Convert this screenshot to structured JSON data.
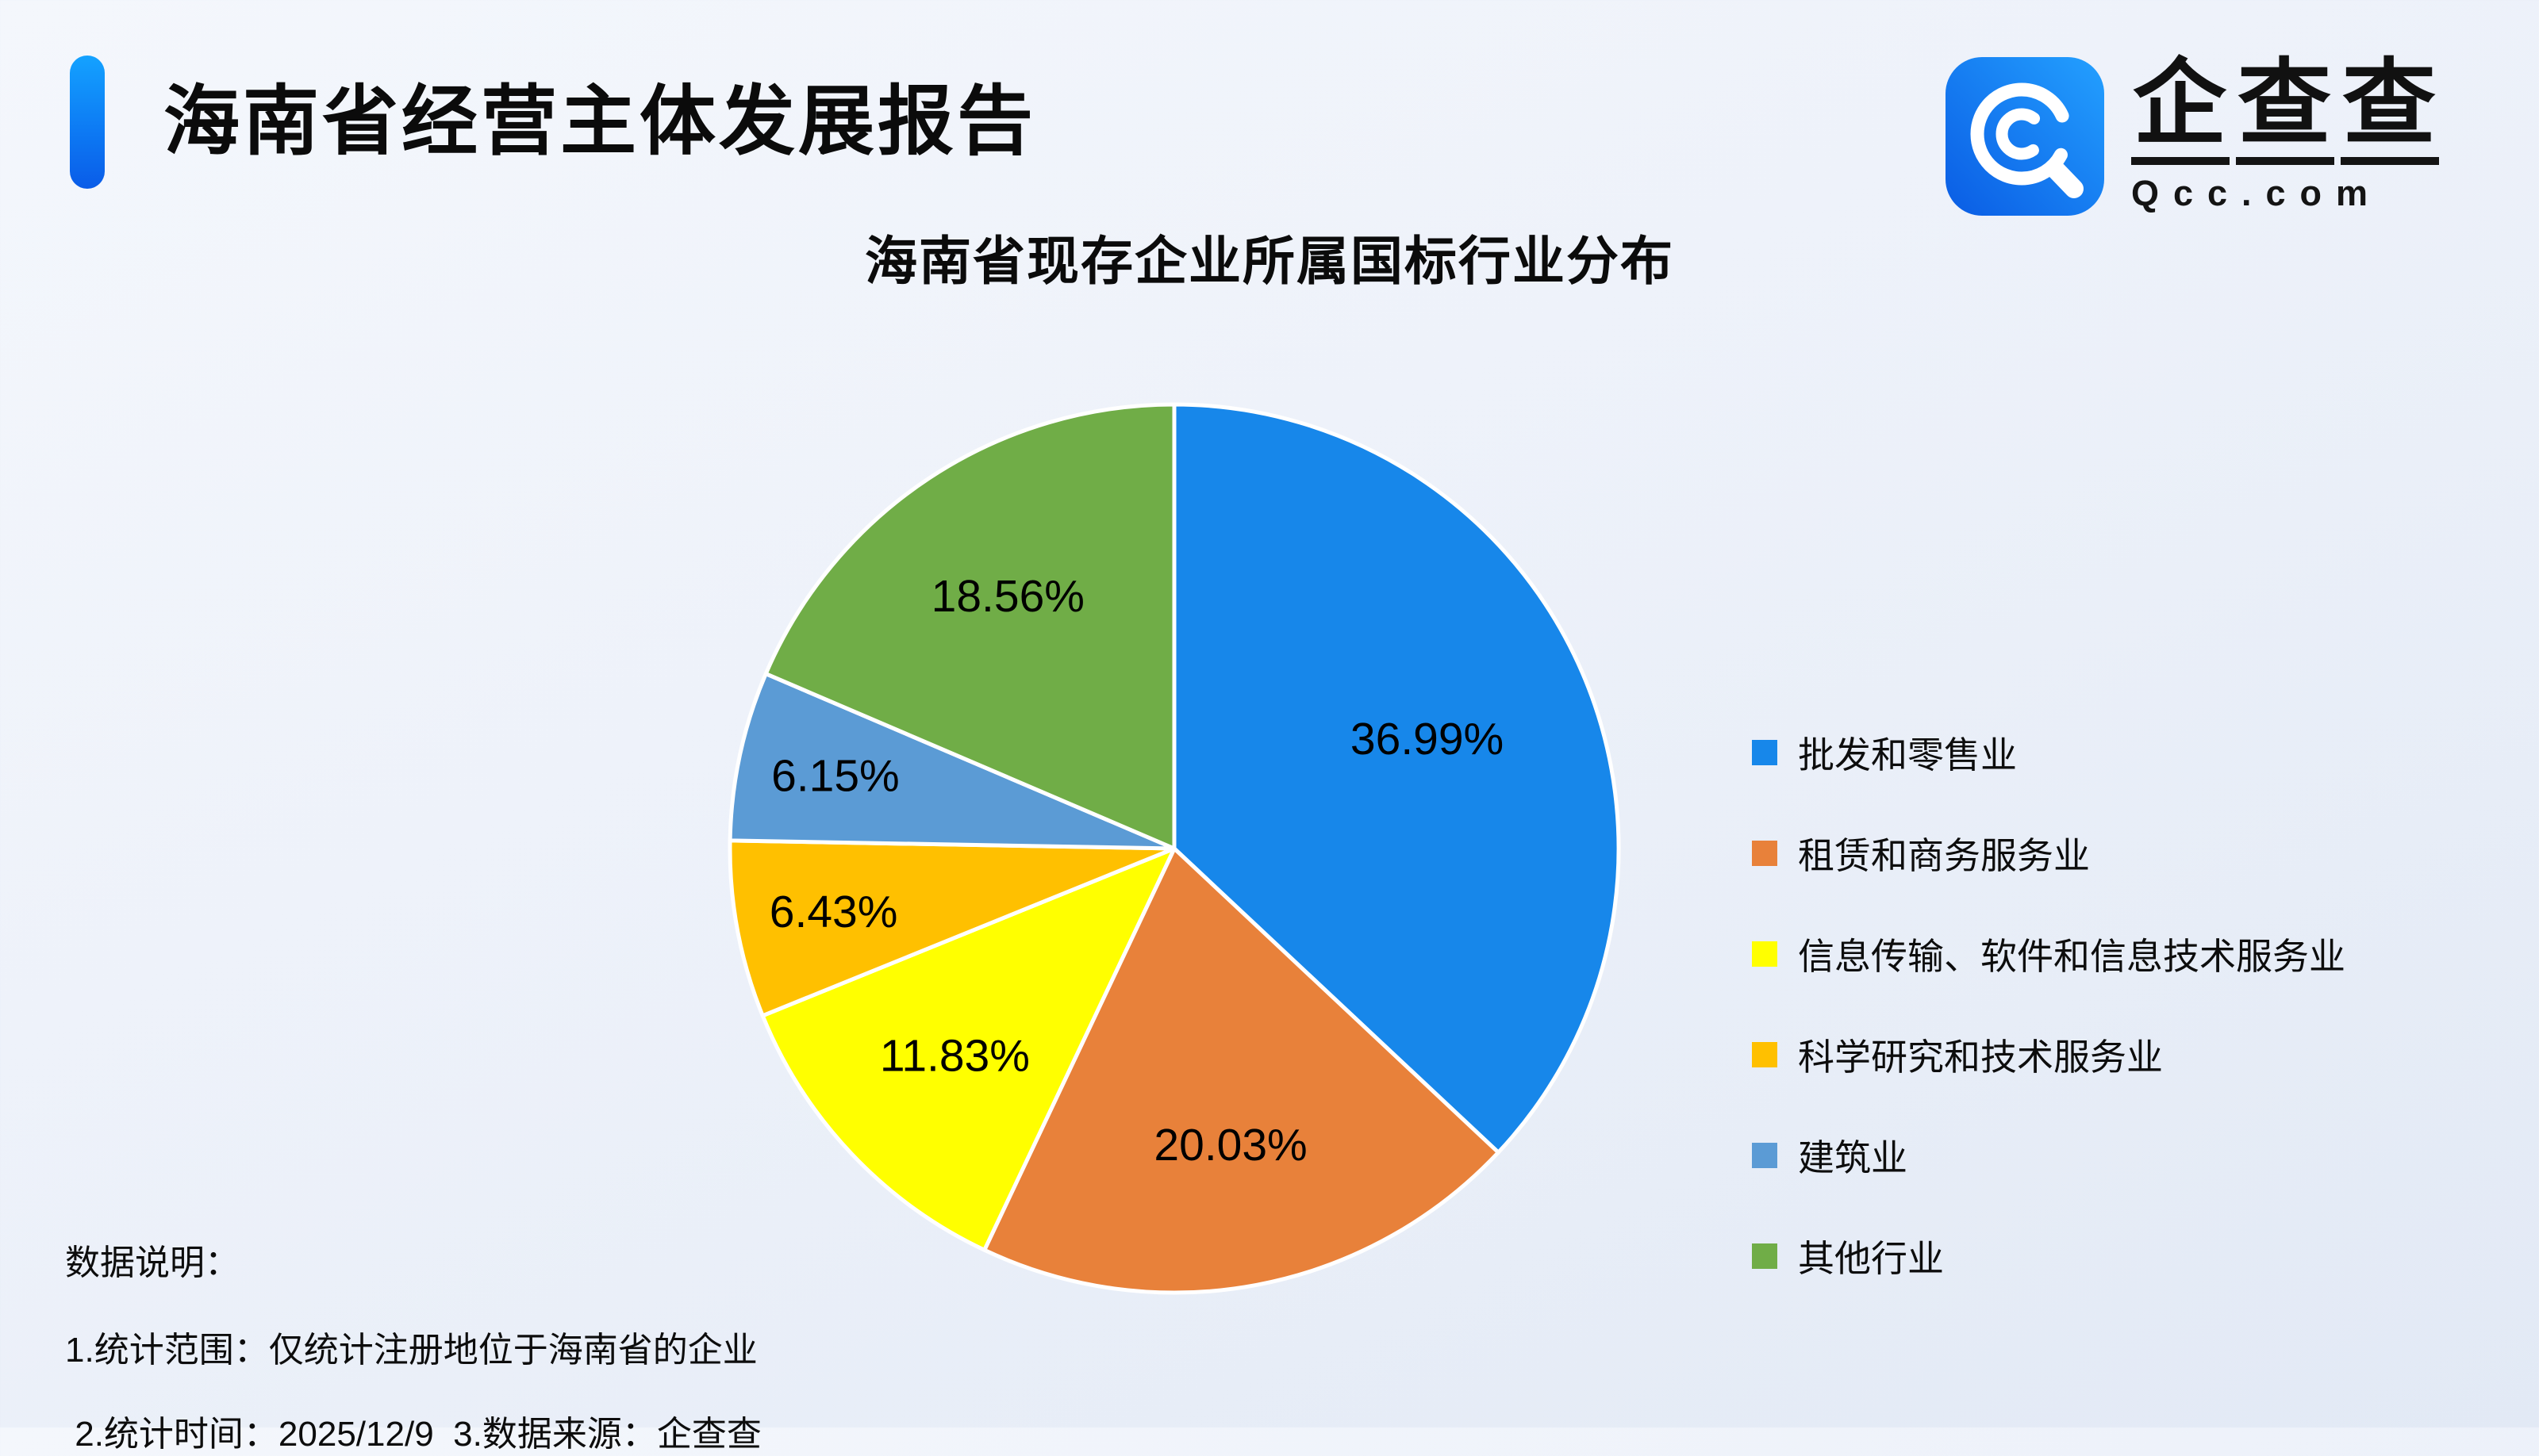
{
  "header": {
    "title": "海南省经营主体发展报告"
  },
  "logo": {
    "brand": "企查查",
    "brand_chars": [
      "企",
      "查",
      "查"
    ],
    "domain": "Qcc.com",
    "icon": "qcc-magnifier-q-icon",
    "icon_gradient": [
      "#0a5ce4",
      "#23a0ff"
    ]
  },
  "chart_data": {
    "type": "pie",
    "title": "海南省现存企业所属国标行业分布",
    "unit": "%",
    "start_angle": "12-oclock",
    "direction": "clockwise",
    "legend_position": "right",
    "slices": [
      {
        "label": "批发和零售业",
        "value": 36.99,
        "display": "36.99%",
        "color": "#1787ea"
      },
      {
        "label": "租赁和商务服务业",
        "value": 20.03,
        "display": "20.03%",
        "color": "#e8813a"
      },
      {
        "label": "信息传输、软件和信息技术服务业",
        "value": 11.83,
        "display": "11.83%",
        "color": "#ffff00"
      },
      {
        "label": "科学研究和技术服务业",
        "value": 6.43,
        "display": "6.43%",
        "color": "#ffc000"
      },
      {
        "label": "建筑业",
        "value": 6.15,
        "display": "6.15%",
        "color": "#5b9bd5"
      },
      {
        "label": "其他行业",
        "value": 18.56,
        "display": "18.56%",
        "color": "#70ad47"
      }
    ]
  },
  "notes": {
    "heading": "数据说明：",
    "line1": "1.统计范围：仅统计注册地位于海南省的企业",
    "line2": " 2.统计时间：2025/12/9  3.数据来源：企查查"
  },
  "colors": {
    "accent_blue": "#0d7bf4",
    "background_top": "#f4f7fc",
    "background_bottom": "#e2e9f5",
    "slice_border": "#ffffff",
    "text": "#111111"
  }
}
